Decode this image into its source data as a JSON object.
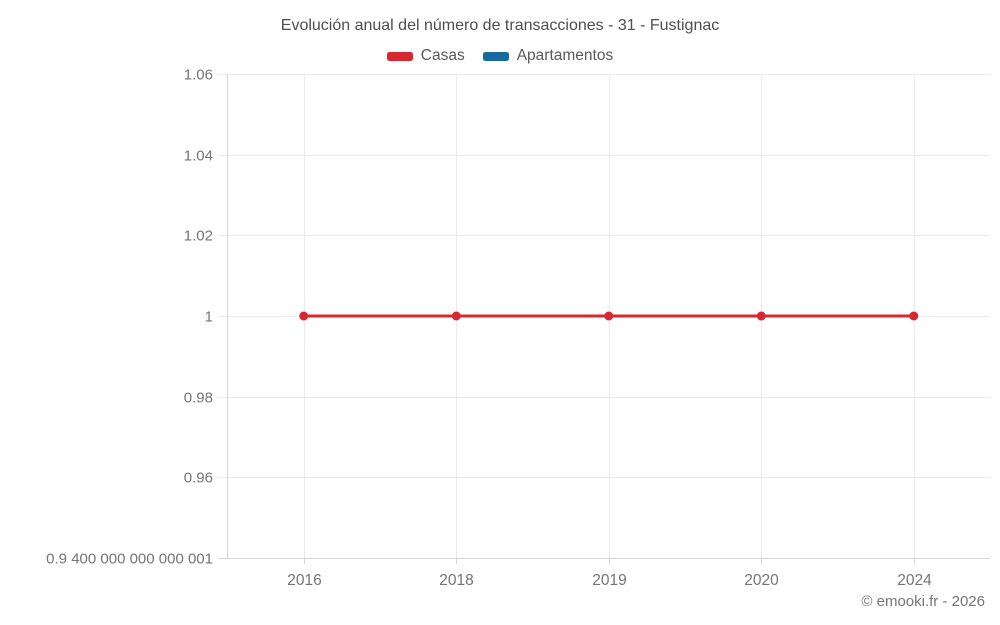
{
  "chart_data": {
    "type": "line",
    "title": "Evolución anual del número de transacciones - 31 - Fustignac",
    "categories": [
      "2016",
      "2018",
      "2019",
      "2020",
      "2024"
    ],
    "series": [
      {
        "name": "Casas",
        "color": "#d8282f",
        "values": [
          1,
          1,
          1,
          1,
          1
        ]
      },
      {
        "name": "Apartamentos",
        "color": "#176a9f",
        "values": []
      }
    ],
    "y_ticks": [
      {
        "label": "1.06",
        "value": 1.06
      },
      {
        "label": "1.04",
        "value": 1.04
      },
      {
        "label": "1.02",
        "value": 1.02
      },
      {
        "label": "1",
        "value": 1
      },
      {
        "label": "0.98",
        "value": 0.98
      },
      {
        "label": "0.96",
        "value": 0.96
      },
      {
        "label": "0.9 400 000 000 000 001",
        "value": 0.9400000000000001
      }
    ],
    "ylim": [
      0.9400000000000001,
      1.06
    ],
    "grid": true,
    "legend_position": "top"
  },
  "footer": {
    "credit": "© emooki.fr - 2026"
  },
  "colors": {
    "series_red": "#d8282f",
    "series_blue": "#176a9f",
    "grid_line": "#ebebeb",
    "axis_line": "#d6d6d6",
    "tick_text": "#757575",
    "title_text": "#4e4e4e",
    "legend_text": "#595959",
    "background": "#ffffff"
  }
}
